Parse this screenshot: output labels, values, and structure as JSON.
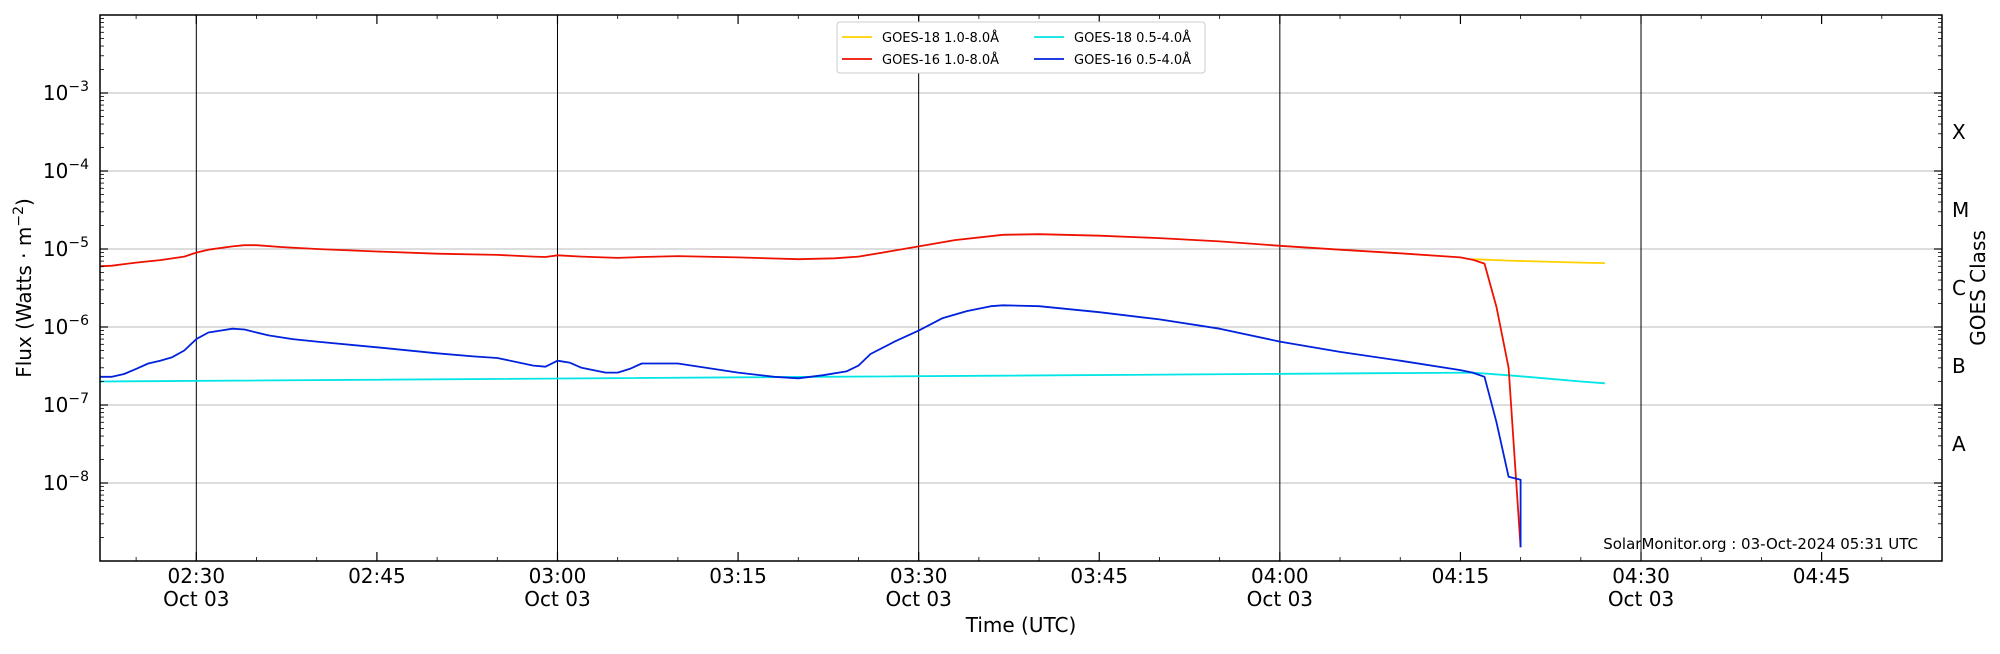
{
  "chart_data": {
    "type": "line",
    "title": "",
    "xlabel": "Time (UTC)",
    "ylabel": "Flux (Watts · m⁻²)",
    "right_ylabel": "GOES Class",
    "y_scale": "log",
    "ylim": [
      1e-09,
      0.01
    ],
    "xlim": [
      "02:22",
      "04:55"
    ],
    "grid": "horizontal at decades; vertical lines every 30 minutes",
    "legend_placement": "top-center",
    "legend_columns": 2,
    "x_ticks": [
      {
        "time": "02:30",
        "line1": "02:30",
        "line2": "Oct 03"
      },
      {
        "time": "02:45",
        "line1": "02:45",
        "line2": ""
      },
      {
        "time": "03:00",
        "line1": "03:00",
        "line2": "Oct 03"
      },
      {
        "time": "03:15",
        "line1": "03:15",
        "line2": ""
      },
      {
        "time": "03:30",
        "line1": "03:30",
        "line2": "Oct 03"
      },
      {
        "time": "03:45",
        "line1": "03:45",
        "line2": ""
      },
      {
        "time": "04:00",
        "line1": "04:00",
        "line2": "Oct 03"
      },
      {
        "time": "04:15",
        "line1": "04:15",
        "line2": ""
      },
      {
        "time": "04:30",
        "line1": "04:30",
        "line2": "Oct 03"
      },
      {
        "time": "04:45",
        "line1": "04:45",
        "line2": ""
      }
    ],
    "vertical_lines": [
      "02:30",
      "03:00",
      "03:30",
      "04:00",
      "04:30"
    ],
    "y_ticks": [
      {
        "value": 1e-08,
        "exp": "−8"
      },
      {
        "value": 1e-07,
        "exp": "−7"
      },
      {
        "value": 1e-06,
        "exp": "−6"
      },
      {
        "value": 1e-05,
        "exp": "−5"
      },
      {
        "value": 0.0001,
        "exp": "−4"
      },
      {
        "value": 0.001,
        "exp": "−3"
      }
    ],
    "goes_classes": [
      {
        "label": "A",
        "value": 3.16e-08
      },
      {
        "label": "B",
        "value": 3.16e-07
      },
      {
        "label": "C",
        "value": 3.16e-06
      },
      {
        "label": "M",
        "value": 3.16e-05
      },
      {
        "label": "X",
        "value": 0.000316
      }
    ],
    "series": [
      {
        "name": "GOES-18 1.0-8.0Å",
        "color": "#ffd000",
        "points": [
          [
            "04:16",
            7.4e-06
          ],
          [
            "04:19",
            7.1e-06
          ],
          [
            "04:22",
            6.9e-06
          ],
          [
            "04:25",
            6.7e-06
          ],
          [
            "04:27",
            6.6e-06
          ]
        ]
      },
      {
        "name": "GOES-16 1.0-8.0Å",
        "color": "#ee1100",
        "points": [
          [
            "02:22",
            6e-06
          ],
          [
            "02:23",
            6.1e-06
          ],
          [
            "02:25",
            6.7e-06
          ],
          [
            "02:27",
            7.2e-06
          ],
          [
            "02:29",
            8e-06
          ],
          [
            "02:30",
            9e-06
          ],
          [
            "02:31",
            9.8e-06
          ],
          [
            "02:33",
            1.08e-05
          ],
          [
            "02:34",
            1.12e-05
          ],
          [
            "02:35",
            1.12e-05
          ],
          [
            "02:37",
            1.06e-05
          ],
          [
            "02:40",
            1e-05
          ],
          [
            "02:45",
            9.3e-06
          ],
          [
            "02:50",
            8.7e-06
          ],
          [
            "02:55",
            8.4e-06
          ],
          [
            "02:58",
            8e-06
          ],
          [
            "02:59",
            7.9e-06
          ],
          [
            "03:00",
            8.3e-06
          ],
          [
            "03:02",
            8e-06
          ],
          [
            "03:05",
            7.7e-06
          ],
          [
            "03:07",
            7.9e-06
          ],
          [
            "03:10",
            8.1e-06
          ],
          [
            "03:15",
            7.8e-06
          ],
          [
            "03:20",
            7.4e-06
          ],
          [
            "03:23",
            7.6e-06
          ],
          [
            "03:25",
            8e-06
          ],
          [
            "03:27",
            9e-06
          ],
          [
            "03:30",
            1.08e-05
          ],
          [
            "03:33",
            1.3e-05
          ],
          [
            "03:37",
            1.52e-05
          ],
          [
            "03:40",
            1.55e-05
          ],
          [
            "03:45",
            1.48e-05
          ],
          [
            "03:50",
            1.38e-05
          ],
          [
            "03:55",
            1.25e-05
          ],
          [
            "04:00",
            1.1e-05
          ],
          [
            "04:05",
            9.8e-06
          ],
          [
            "04:10",
            8.8e-06
          ],
          [
            "04:15",
            7.8e-06
          ],
          [
            "04:16",
            7.3e-06
          ],
          [
            "04:17",
            6.5e-06
          ],
          [
            "04:18",
            1.8e-06
          ],
          [
            "04:19",
            3e-07
          ],
          [
            "04:20",
            1.5e-09
          ]
        ]
      },
      {
        "name": "GOES-18 0.5-4.0Å",
        "color": "#00e5e5",
        "points": [
          [
            "02:22",
            2e-07
          ],
          [
            "04:16",
            2.6e-07
          ],
          [
            "04:19",
            2.4e-07
          ],
          [
            "04:22",
            2.2e-07
          ],
          [
            "04:25",
            2e-07
          ],
          [
            "04:27",
            1.9e-07
          ]
        ]
      },
      {
        "name": "GOES-16 0.5-4.0Å",
        "color": "#0022dd",
        "points": [
          [
            "02:22",
            2.3e-07
          ],
          [
            "02:23",
            2.3e-07
          ],
          [
            "02:24",
            2.5e-07
          ],
          [
            "02:25",
            2.9e-07
          ],
          [
            "02:26",
            3.4e-07
          ],
          [
            "02:27",
            3.7e-07
          ],
          [
            "02:28",
            4.1e-07
          ],
          [
            "02:29",
            5e-07
          ],
          [
            "02:30",
            7e-07
          ],
          [
            "02:31",
            8.5e-07
          ],
          [
            "02:32",
            9e-07
          ],
          [
            "02:33",
            9.5e-07
          ],
          [
            "02:34",
            9.3e-07
          ],
          [
            "02:35",
            8.5e-07
          ],
          [
            "02:36",
            7.8e-07
          ],
          [
            "02:38",
            7e-07
          ],
          [
            "02:40",
            6.5e-07
          ],
          [
            "02:45",
            5.5e-07
          ],
          [
            "02:50",
            4.6e-07
          ],
          [
            "02:53",
            4.2e-07
          ],
          [
            "02:55",
            4e-07
          ],
          [
            "02:58",
            3.2e-07
          ],
          [
            "02:59",
            3.1e-07
          ],
          [
            "03:00",
            3.7e-07
          ],
          [
            "03:01",
            3.5e-07
          ],
          [
            "03:02",
            3e-07
          ],
          [
            "03:04",
            2.6e-07
          ],
          [
            "03:05",
            2.6e-07
          ],
          [
            "03:06",
            2.9e-07
          ],
          [
            "03:07",
            3.4e-07
          ],
          [
            "03:10",
            3.4e-07
          ],
          [
            "03:15",
            2.6e-07
          ],
          [
            "03:18",
            2.3e-07
          ],
          [
            "03:20",
            2.2e-07
          ],
          [
            "03:22",
            2.4e-07
          ],
          [
            "03:24",
            2.7e-07
          ],
          [
            "03:25",
            3.2e-07
          ],
          [
            "03:26",
            4.5e-07
          ],
          [
            "03:28",
            6.5e-07
          ],
          [
            "03:30",
            9e-07
          ],
          [
            "03:32",
            1.3e-06
          ],
          [
            "03:34",
            1.6e-06
          ],
          [
            "03:36",
            1.85e-06
          ],
          [
            "03:37",
            1.9e-06
          ],
          [
            "03:40",
            1.85e-06
          ],
          [
            "03:45",
            1.55e-06
          ],
          [
            "03:50",
            1.25e-06
          ],
          [
            "03:55",
            9.5e-07
          ],
          [
            "04:00",
            6.5e-07
          ],
          [
            "04:05",
            4.8e-07
          ],
          [
            "04:10",
            3.7e-07
          ],
          [
            "04:15",
            2.8e-07
          ],
          [
            "04:16",
            2.6e-07
          ],
          [
            "04:17",
            2.3e-07
          ],
          [
            "04:18",
            6e-08
          ],
          [
            "04:19",
            1.2e-08
          ],
          [
            "04:20",
            1.1e-08
          ],
          [
            "04:20",
            1.5e-09
          ]
        ]
      }
    ],
    "annotation": "SolarMonitor.org : 03-Oct-2024 05:31 UTC"
  }
}
